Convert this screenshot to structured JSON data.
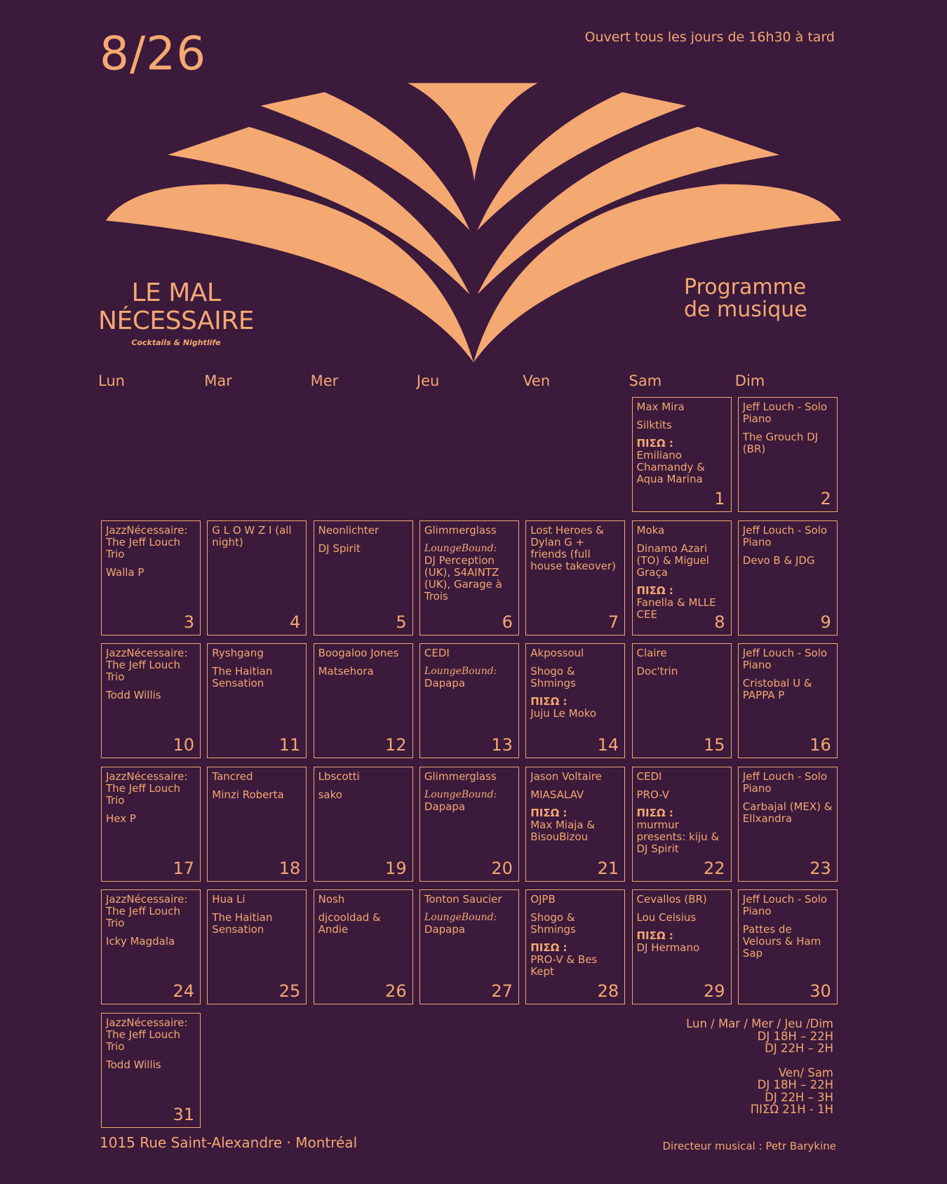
{
  "header": {
    "date": "8/26",
    "hours": "Ouvert tous les jours de 16h30 à tard"
  },
  "brand": {
    "name_line1": "LE MAL",
    "name_line2": "NÉCESSAIRE",
    "tagline": "Cocktails & Nightlife"
  },
  "program_title": [
    "Programme",
    "de musique"
  ],
  "weekdays": [
    "Lun",
    "Mar",
    "Mer",
    "Jeu",
    "Ven",
    "Sam",
    "Dim"
  ],
  "days": [
    {
      "day": 1,
      "lines": [
        "Max Mira",
        "Silktits",
        {
          "piso": "ΠΙΣΩ :",
          "text": "Emiliano Chamandy & Aqua Marina"
        }
      ]
    },
    {
      "day": 2,
      "lines": [
        "Jeff Louch - Solo Piano",
        "The Grouch DJ (BR)"
      ]
    },
    {
      "day": 3,
      "lines": [
        "JazzNécessaire: The Jeff Louch Trio",
        "Walla P"
      ]
    },
    {
      "day": 4,
      "lines": [
        "G L O W Z I (all night)"
      ]
    },
    {
      "day": 5,
      "lines": [
        "Neonlichter",
        "DJ Spirit"
      ]
    },
    {
      "day": 6,
      "lines": [
        "Glimmerglass",
        {
          "lounge": "LoungeBound:",
          "text": "DJ Perception (UK), S4AINTZ (UK), Garage à Trois"
        }
      ]
    },
    {
      "day": 7,
      "lines": [
        "Lost Heroes & Dylan G + friends (full house takeover)"
      ]
    },
    {
      "day": 8,
      "lines": [
        "Moka",
        "Dinamo Azari (TO) & Miguel Graça",
        {
          "piso": "ΠΙΣΩ :",
          "text": "Fanella & MLLE CEE"
        }
      ]
    },
    {
      "day": 9,
      "lines": [
        "Jeff Louch - Solo Piano",
        "Devo B & JDG"
      ]
    },
    {
      "day": 10,
      "lines": [
        "JazzNécessaire: The Jeff Louch Trio",
        "Todd Willis"
      ]
    },
    {
      "day": 11,
      "lines": [
        "Ryshgang",
        "The Haitian Sensation"
      ]
    },
    {
      "day": 12,
      "lines": [
        "Boogaloo Jones",
        "Matsehora"
      ]
    },
    {
      "day": 13,
      "lines": [
        "CEDI",
        {
          "lounge": "LoungeBound:",
          "text": "Dapapa"
        }
      ]
    },
    {
      "day": 14,
      "lines": [
        "Akpossoul",
        "Shogo & Shmings",
        {
          "piso": "ΠΙΣΩ :",
          "text": "Juju Le Moko"
        }
      ]
    },
    {
      "day": 15,
      "lines": [
        "Claire",
        "Doc'trin"
      ]
    },
    {
      "day": 16,
      "lines": [
        "Jeff Louch - Solo Piano",
        "Cristobal U & PAPPA P"
      ]
    },
    {
      "day": 17,
      "lines": [
        "JazzNécessaire: The Jeff Louch Trio",
        "Hex P"
      ]
    },
    {
      "day": 18,
      "lines": [
        "Tancred",
        "Minzi Roberta"
      ]
    },
    {
      "day": 19,
      "lines": [
        "Lbscotti",
        "sako"
      ]
    },
    {
      "day": 20,
      "lines": [
        "Glimmerglass",
        {
          "lounge": "LoungeBound:",
          "text": "Dapapa"
        }
      ]
    },
    {
      "day": 21,
      "lines": [
        "Jason Voltaire",
        "MIASALAV",
        {
          "piso": "ΠΙΣΩ :",
          "text": "Max Miaja & BisouBizou"
        }
      ]
    },
    {
      "day": 22,
      "lines": [
        "CEDI",
        "PRO-V",
        {
          "piso": "ΠΙΣΩ :",
          "text": "murmur presents: kiju & DJ Spirit"
        }
      ]
    },
    {
      "day": 23,
      "lines": [
        "Jeff Louch - Solo Piano",
        "Carbajal (MEX) & Ellxandra"
      ]
    },
    {
      "day": 24,
      "lines": [
        "JazzNécessaire: The Jeff Louch Trio",
        "Icky Magdala"
      ]
    },
    {
      "day": 25,
      "lines": [
        "Hua Li",
        "The Haitian Sensation"
      ]
    },
    {
      "day": 26,
      "lines": [
        "Nosh",
        "djcooldad & Andie"
      ]
    },
    {
      "day": 27,
      "lines": [
        "Tonton Saucier",
        {
          "lounge": "LoungeBound:",
          "text": "Dapapa"
        }
      ]
    },
    {
      "day": 28,
      "lines": [
        "OJPB",
        "Shogo & Shmings",
        {
          "piso": "ΠΙΣΩ :",
          "text": "PRO-V & Bes Kept"
        }
      ]
    },
    {
      "day": 29,
      "lines": [
        "Cevallos (BR)",
        "Lou Celsius",
        {
          "piso": "ΠΙΣΩ :",
          "text": "DJ Hermano"
        }
      ]
    },
    {
      "day": 30,
      "lines": [
        "Jeff Louch - Solo Piano",
        "Pattes de Velours & Ham Sap"
      ]
    },
    {
      "day": 31,
      "lines": [
        "JazzNécessaire: The Jeff Louch Trio",
        "Todd Willis"
      ]
    }
  ],
  "schedule": [
    {
      "days": "Lun / Mar / Mer / Jeu /Dim",
      "slots": [
        "DJ 18H – 22H",
        "DJ 22H – 2H"
      ]
    },
    {
      "days": "Ven/ Sam",
      "slots": [
        "DJ 18H – 22H",
        "DJ 22H – 3H",
        "ΠΙΣΩ 21H - 1H"
      ]
    }
  ],
  "footer": {
    "address": "1015 Rue Saint-Alexandre · Montréal",
    "director": "Directeur musical : Petr Barykine"
  }
}
